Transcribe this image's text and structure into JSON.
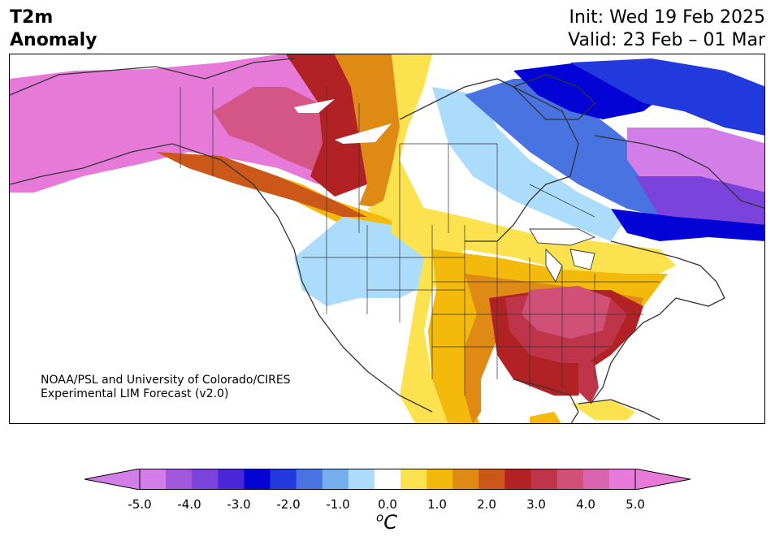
{
  "title": {
    "left_line1": "T2m",
    "left_line2": "Anomaly",
    "init": "Init: Wed 19 Feb 2025",
    "valid": "Valid: 23 Feb – 01 Mar"
  },
  "credit": {
    "line1": "NOAA/PSL and University of Colorado/CIRES",
    "line2": "Experimental LIM Forecast (v2.0)"
  },
  "colorbar": {
    "ticks": [
      "-5.0",
      "-4.0",
      "-3.0",
      "-2.0",
      "-1.0",
      "0.0",
      "1.0",
      "2.0",
      "3.0",
      "4.0",
      "5.0"
    ],
    "unit_sup": "o",
    "unit": "C",
    "levels": [
      -5.0,
      -4.5,
      -4.0,
      -3.5,
      -3.0,
      -2.5,
      -2.0,
      -1.5,
      -1.0,
      -0.5,
      0.5,
      1.0,
      1.5,
      2.0,
      2.5,
      3.0,
      3.5,
      4.0,
      4.5,
      5.0
    ],
    "colors": [
      "#d27de8",
      "#a257dd",
      "#7a43dc",
      "#4a27d6",
      "#0303d6",
      "#2239dd",
      "#4a73e2",
      "#74aeef",
      "#acdcfb",
      "#ffffff",
      "#fde24f",
      "#f4ba0b",
      "#df8a14",
      "#cb5718",
      "#b22224",
      "#c0344a",
      "#d05078",
      "#da63b0",
      "#e77ad8"
    ],
    "extend_low": "#d27de8",
    "extend_high": "#e77ad8"
  },
  "map": {
    "region": "North America",
    "variable": "2-m temperature anomaly",
    "features": [
      "coastlines",
      "country borders",
      "state/province borders"
    ]
  }
}
